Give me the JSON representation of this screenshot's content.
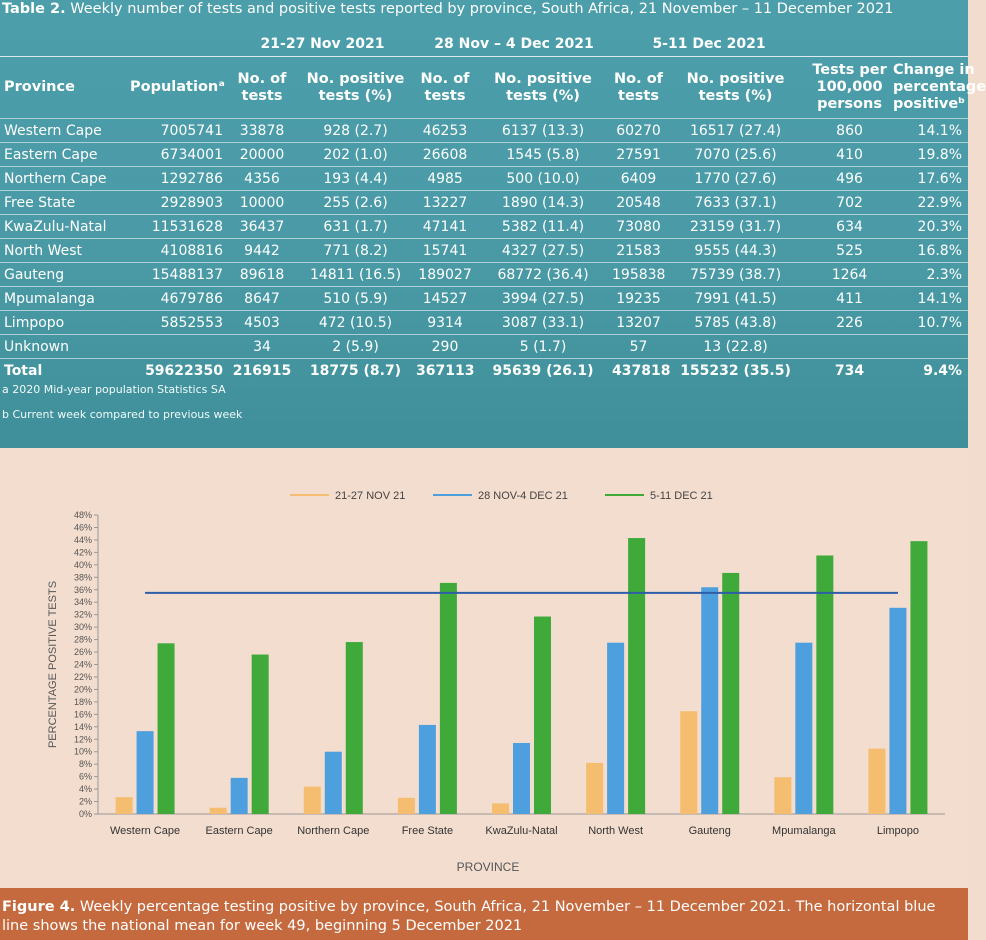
{
  "table": {
    "title_bold": "Table 2.",
    "title_rest": " Weekly number of tests and positive tests reported by province, South Africa, 21 November – 11 December 2021",
    "groups": [
      "21-27 Nov 2021",
      "28 Nov – 4 Dec 2021",
      "5-11 Dec 2021"
    ],
    "headers": {
      "province": "Province",
      "population": "Populationᵃ",
      "tests_1": "No. of",
      "tests_2": "tests",
      "pos_1": "No. positive",
      "pos_2": "tests (%)",
      "per100k_1": "Tests per",
      "per100k_2": "100,000",
      "per100k_3": "persons",
      "change_1": "Change in",
      "change_2": "percentage",
      "change_3": "positiveᵇ"
    },
    "rows": [
      [
        "Western Cape",
        "7005741",
        "33878",
        "928 (2.7)",
        "46253",
        "6137 (13.3)",
        "60270",
        "16517 (27.4)",
        "860",
        "14.1%"
      ],
      [
        "Eastern Cape",
        "6734001",
        "20000",
        "202 (1.0)",
        "26608",
        "1545 (5.8)",
        "27591",
        "7070 (25.6)",
        "410",
        "19.8%"
      ],
      [
        "Northern Cape",
        "1292786",
        "4356",
        "193 (4.4)",
        "4985",
        "500 (10.0)",
        "6409",
        "1770 (27.6)",
        "496",
        "17.6%"
      ],
      [
        "Free State",
        "2928903",
        "10000",
        "255 (2.6)",
        "13227",
        "1890 (14.3)",
        "20548",
        "7633 (37.1)",
        "702",
        "22.9%"
      ],
      [
        "KwaZulu-Natal",
        "11531628",
        "36437",
        "631 (1.7)",
        "47141",
        "5382 (11.4)",
        "73080",
        "23159 (31.7)",
        "634",
        "20.3%"
      ],
      [
        "North West",
        "4108816",
        "9442",
        "771 (8.2)",
        "15741",
        "4327 (27.5)",
        "21583",
        "9555 (44.3)",
        "525",
        "16.8%"
      ],
      [
        "Gauteng",
        "15488137",
        "89618",
        "14811 (16.5)",
        "189027",
        "68772 (36.4)",
        "195838",
        "75739 (38.7)",
        "1264",
        "2.3%"
      ],
      [
        "Mpumalanga",
        "4679786",
        "8647",
        "510 (5.9)",
        "14527",
        "3994 (27.5)",
        "19235",
        "7991 (41.5)",
        "411",
        "14.1%"
      ],
      [
        "Limpopo",
        "5852553",
        "4503",
        "472 (10.5)",
        "9314",
        "3087 (33.1)",
        "13207",
        "5785 (43.8)",
        "226",
        "10.7%"
      ],
      [
        "Unknown",
        "",
        "34",
        "2 (5.9)",
        "290",
        "5 (1.7)",
        "57",
        "13 (22.8)",
        "",
        ""
      ]
    ],
    "total": [
      "Total",
      "59622350",
      "216915",
      "18775 (8.7)",
      "367113",
      "95639 (26.1)",
      "437818",
      "155232 (35.5)",
      "734",
      "9.4%"
    ],
    "footnote_a": "a 2020 Mid-year population Statistics SA",
    "footnote_b": "b Current week compared to previous week"
  },
  "chart_data": {
    "type": "bar",
    "categories": [
      "Western Cape",
      "Eastern Cape",
      "Northern Cape",
      "Free State",
      "KwaZulu-Natal",
      "North West",
      "Gauteng",
      "Mpumalanga",
      "Limpopo"
    ],
    "series": [
      {
        "name": "21-27 NOV 21",
        "color": "#f4bd6f",
        "values": [
          2.7,
          1.0,
          4.4,
          2.6,
          1.7,
          8.2,
          16.5,
          5.9,
          10.5
        ]
      },
      {
        "name": "28 NOV-4 DEC  21",
        "color": "#4e9fde",
        "values": [
          13.3,
          5.8,
          10.0,
          14.3,
          11.4,
          27.5,
          36.4,
          27.5,
          33.1
        ]
      },
      {
        "name": "5-11 DEC  21",
        "color": "#3fa93a",
        "values": [
          27.4,
          25.6,
          27.6,
          37.1,
          31.7,
          44.3,
          38.7,
          41.5,
          43.8
        ]
      }
    ],
    "reference_line": {
      "value": 35.5,
      "color": "#2e5ea8"
    },
    "ylim": [
      0,
      48
    ],
    "yticks": [
      "0%",
      "2%",
      "4%",
      "6%",
      "8%",
      "10%",
      "12%",
      "14%",
      "16%",
      "18%",
      "20%",
      "22%",
      "24%",
      "26%",
      "28%",
      "30%",
      "32%",
      "34%",
      "36%",
      "38%",
      "40%",
      "42%",
      "44%",
      "46%",
      "48%"
    ],
    "xlabel": "PROVINCE",
    "ylabel": "PERCENTAGE POSITIVE TESTS",
    "legend_position": "top",
    "grid": false
  },
  "caption": {
    "bold": "Figure 4.",
    "text": " Weekly percentage testing positive by province, South Africa, 21 November – 11 December 2021. The horizontal blue line shows the national mean for week 49, beginning 5 December 2021"
  }
}
